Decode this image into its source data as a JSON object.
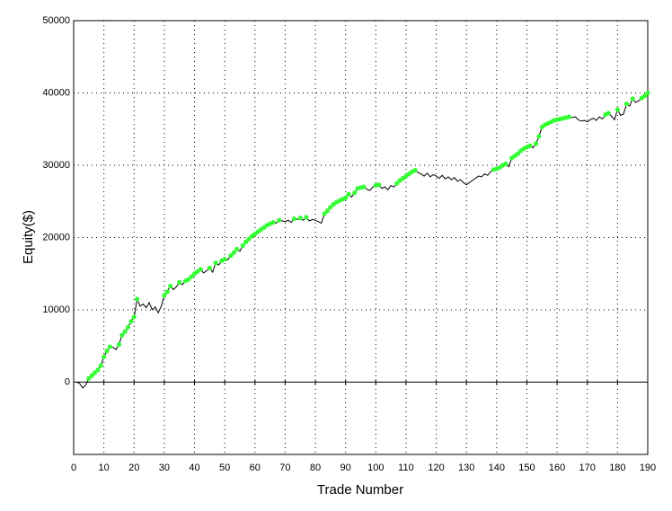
{
  "chart_data": {
    "type": "line",
    "xlabel": "Trade Number",
    "ylabel": "Equity($)",
    "x": [
      0,
      1,
      2,
      3,
      4,
      5,
      6,
      7,
      8,
      9,
      10,
      11,
      12,
      13,
      14,
      15,
      16,
      17,
      18,
      19,
      20,
      21,
      22,
      23,
      24,
      25,
      26,
      27,
      28,
      29,
      30,
      31,
      32,
      33,
      34,
      35,
      36,
      37,
      38,
      39,
      40,
      41,
      42,
      43,
      44,
      45,
      46,
      47,
      48,
      49,
      50,
      51,
      52,
      53,
      54,
      55,
      56,
      57,
      58,
      59,
      60,
      61,
      62,
      63,
      64,
      65,
      66,
      67,
      68,
      69,
      70,
      71,
      72,
      73,
      74,
      75,
      76,
      77,
      78,
      79,
      80,
      81,
      82,
      83,
      84,
      85,
      86,
      87,
      88,
      89,
      90,
      91,
      92,
      93,
      94,
      95,
      96,
      97,
      98,
      99,
      100,
      101,
      102,
      103,
      104,
      105,
      106,
      107,
      108,
      109,
      110,
      111,
      112,
      113,
      114,
      115,
      116,
      117,
      118,
      119,
      120,
      121,
      122,
      123,
      124,
      125,
      126,
      127,
      128,
      129,
      130,
      131,
      132,
      133,
      134,
      135,
      136,
      137,
      138,
      139,
      140,
      141,
      142,
      143,
      144,
      145,
      146,
      147,
      148,
      149,
      150,
      151,
      152,
      153,
      154,
      155,
      156,
      157,
      158,
      159,
      160,
      161,
      162,
      163,
      164,
      165,
      166,
      167,
      168,
      169,
      170,
      171,
      172,
      173,
      174,
      175,
      176,
      177,
      178,
      179,
      180,
      181,
      182,
      183,
      184,
      185,
      186,
      187,
      188,
      189,
      190
    ],
    "series": [
      {
        "color": "#000000",
        "marker_color": "#33ff33",
        "values": [
          0,
          0,
          -200,
          -800,
          -400,
          500,
          900,
          1300,
          1700,
          2300,
          3500,
          4300,
          4900,
          4800,
          4500,
          5200,
          6500,
          7000,
          7600,
          8400,
          9000,
          11500,
          10500,
          10800,
          10300,
          11000,
          10000,
          10400,
          9600,
          10500,
          12000,
          12500,
          13300,
          12800,
          13200,
          13800,
          13500,
          14000,
          14200,
          14600,
          15000,
          15300,
          15600,
          15100,
          15400,
          15800,
          15200,
          16500,
          16200,
          16800,
          17000,
          16900,
          17500,
          17900,
          18400,
          18100,
          18900,
          19400,
          19800,
          20200,
          20500,
          20800,
          21100,
          21400,
          21700,
          21900,
          22100,
          22000,
          22400,
          22300,
          22200,
          22400,
          22100,
          22600,
          22500,
          22700,
          22400,
          22800,
          22300,
          22500,
          22400,
          22200,
          22000,
          23300,
          23700,
          24200,
          24600,
          24900,
          25100,
          25300,
          25500,
          26000,
          25600,
          26200,
          26800,
          26900,
          27000,
          26700,
          26500,
          27000,
          27200,
          27300,
          26800,
          27000,
          26600,
          27200,
          27000,
          27500,
          27900,
          28200,
          28500,
          28800,
          29100,
          29300,
          29000,
          28800,
          28500,
          28900,
          28400,
          28700,
          28500,
          28200,
          28600,
          28100,
          28400,
          28000,
          28300,
          27800,
          28000,
          27600,
          27300,
          27600,
          27900,
          28200,
          28500,
          28400,
          28800,
          28600,
          29100,
          29400,
          29500,
          29700,
          30000,
          30200,
          29800,
          31000,
          31300,
          31600,
          32000,
          32300,
          32500,
          32700,
          32400,
          33000,
          34000,
          35300,
          35600,
          35800,
          36000,
          36200,
          36300,
          36400,
          36500,
          36600,
          36700,
          36600,
          36700,
          36300,
          36100,
          36200,
          36000,
          36300,
          36500,
          36200,
          36700,
          36400,
          37000,
          37200,
          36800,
          36300,
          37700,
          36900,
          37100,
          38500,
          38200,
          39200,
          38700,
          38900,
          39300,
          39600,
          40000
        ]
      }
    ],
    "xlim": [
      0,
      190
    ],
    "xticks": [
      0,
      10,
      20,
      30,
      40,
      50,
      60,
      70,
      80,
      90,
      100,
      110,
      120,
      130,
      140,
      150,
      160,
      170,
      180,
      190
    ],
    "ylim": [
      -10000,
      50000
    ],
    "yticks": [
      0,
      10000,
      20000,
      30000,
      40000,
      50000
    ],
    "grid": true
  }
}
